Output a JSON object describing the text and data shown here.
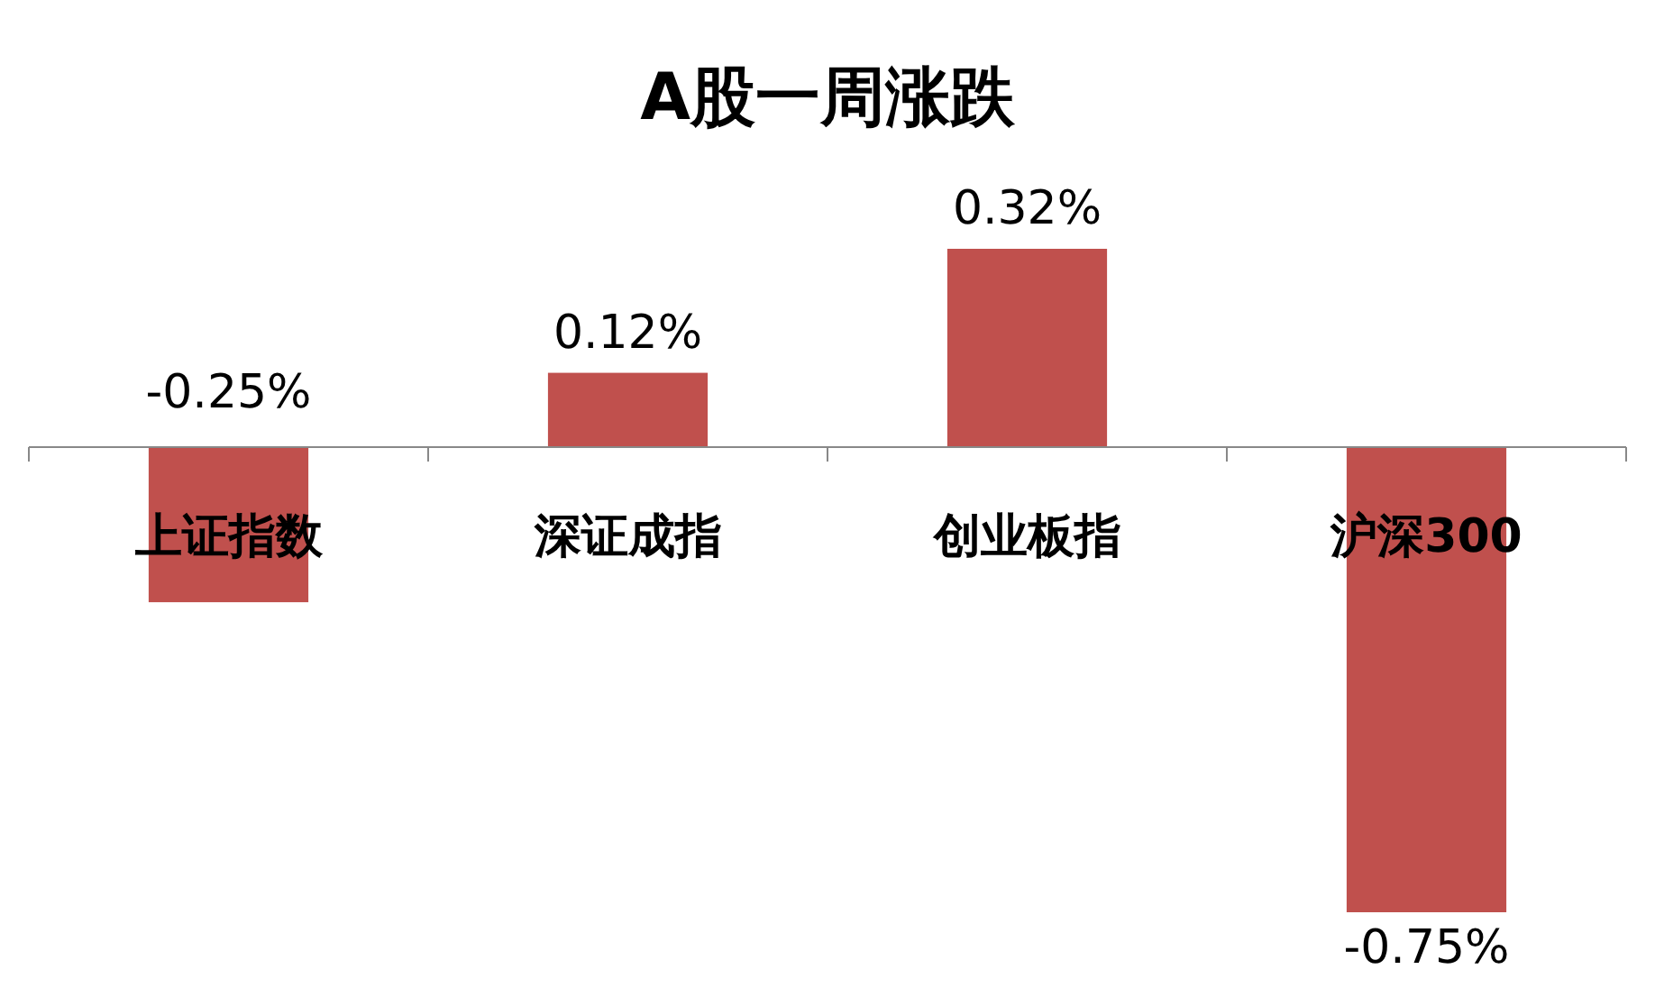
{
  "chart_data": {
    "type": "bar",
    "title": "A股一周涨跌",
    "categories": [
      "上证指数",
      "深证成指",
      "创业板指",
      "沪深300"
    ],
    "values": [
      -0.25,
      0.12,
      0.32,
      -0.75
    ],
    "value_labels": [
      "-0.25%",
      "0.12%",
      "0.32%",
      "-0.75%"
    ],
    "color": "#c0504d"
  }
}
